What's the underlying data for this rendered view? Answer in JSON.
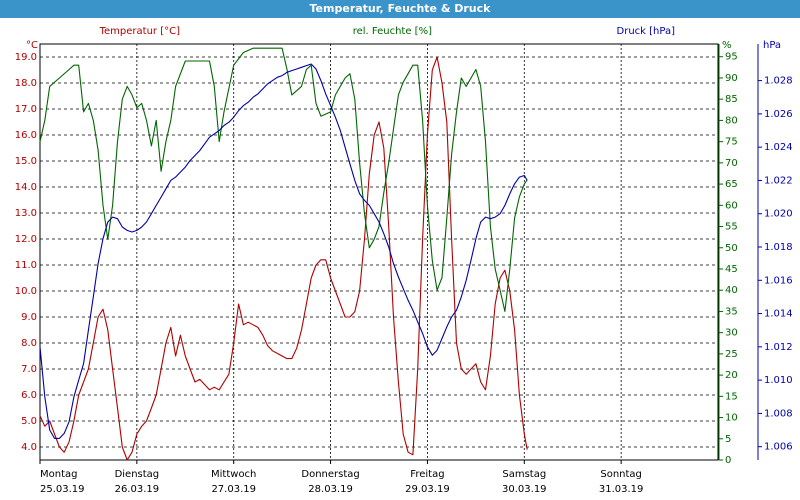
{
  "window": {
    "title": "Temperatur, Feuchte & Druck"
  },
  "colors": {
    "temperature": "#b00000",
    "humidity": "#006600",
    "pressure": "#0000aa",
    "grid": "#000000"
  },
  "chart_data": {
    "type": "line",
    "title": "Temperatur, Feuchte & Druck",
    "x_axis": {
      "range_days": [
        0,
        7
      ],
      "tick_labels": [
        {
          "day": "Montag",
          "date": "25.03.19"
        },
        {
          "day": "Dienstag",
          "date": "26.03.19"
        },
        {
          "day": "Mittwoch",
          "date": "27.03.19"
        },
        {
          "day": "Donnerstag",
          "date": "28.03.19"
        },
        {
          "day": "Freitag",
          "date": "29.03.19"
        },
        {
          "day": "Samstag",
          "date": "30.03.19"
        },
        {
          "day": "Sonntag",
          "date": "31.03.19"
        }
      ]
    },
    "axes": {
      "temperature": {
        "label": "Temperatur [°C]",
        "unit": "°C",
        "range": [
          3.5,
          19.5
        ],
        "ticks": [
          4.0,
          5.0,
          6.0,
          7.0,
          8.0,
          9.0,
          10.0,
          11.0,
          12.0,
          13.0,
          14.0,
          15.0,
          16.0,
          17.0,
          18.0,
          19.0
        ]
      },
      "humidity": {
        "label": "rel. Feuchte [%]",
        "unit": "%",
        "range": [
          0,
          98
        ],
        "ticks": [
          0,
          5,
          10,
          15,
          20,
          25,
          30,
          35,
          40,
          45,
          50,
          55,
          60,
          65,
          70,
          75,
          80,
          85,
          90,
          95
        ]
      },
      "pressure": {
        "label": "Druck [hPa]",
        "unit": "hPa",
        "range": [
          1.0052,
          1.0302
        ],
        "ticks": [
          1.006,
          1.008,
          1.01,
          1.012,
          1.014,
          1.016,
          1.018,
          1.02,
          1.022,
          1.024,
          1.026,
          1.028
        ]
      }
    },
    "grid": true,
    "series": [
      {
        "name": "Temperatur [°C]",
        "axis": "temperature",
        "points": [
          [
            0,
            5.2
          ],
          [
            0.05,
            4.8
          ],
          [
            0.1,
            5.0
          ],
          [
            0.15,
            4.5
          ],
          [
            0.2,
            4.0
          ],
          [
            0.25,
            3.8
          ],
          [
            0.3,
            4.2
          ],
          [
            0.35,
            5.0
          ],
          [
            0.4,
            6.0
          ],
          [
            0.45,
            6.5
          ],
          [
            0.5,
            7.0
          ],
          [
            0.55,
            8.0
          ],
          [
            0.6,
            9.0
          ],
          [
            0.65,
            9.3
          ],
          [
            0.7,
            8.5
          ],
          [
            0.75,
            7.0
          ],
          [
            0.8,
            5.5
          ],
          [
            0.85,
            4.0
          ],
          [
            0.9,
            3.5
          ],
          [
            0.95,
            3.8
          ],
          [
            1.0,
            4.5
          ],
          [
            1.05,
            4.8
          ],
          [
            1.1,
            5.0
          ],
          [
            1.15,
            5.5
          ],
          [
            1.2,
            6.0
          ],
          [
            1.25,
            7.0
          ],
          [
            1.3,
            8.0
          ],
          [
            1.35,
            8.6
          ],
          [
            1.4,
            7.5
          ],
          [
            1.45,
            8.3
          ],
          [
            1.5,
            7.5
          ],
          [
            1.55,
            7.0
          ],
          [
            1.6,
            6.5
          ],
          [
            1.65,
            6.6
          ],
          [
            1.7,
            6.4
          ],
          [
            1.75,
            6.2
          ],
          [
            1.8,
            6.3
          ],
          [
            1.85,
            6.2
          ],
          [
            1.9,
            6.5
          ],
          [
            1.95,
            6.8
          ],
          [
            2.0,
            8.0
          ],
          [
            2.05,
            9.5
          ],
          [
            2.1,
            8.7
          ],
          [
            2.15,
            8.8
          ],
          [
            2.2,
            8.7
          ],
          [
            2.25,
            8.6
          ],
          [
            2.3,
            8.3
          ],
          [
            2.35,
            7.9
          ],
          [
            2.4,
            7.7
          ],
          [
            2.45,
            7.6
          ],
          [
            2.5,
            7.5
          ],
          [
            2.55,
            7.4
          ],
          [
            2.6,
            7.4
          ],
          [
            2.65,
            7.8
          ],
          [
            2.7,
            8.5
          ],
          [
            2.75,
            9.5
          ],
          [
            2.8,
            10.5
          ],
          [
            2.85,
            11.0
          ],
          [
            2.9,
            11.2
          ],
          [
            2.95,
            11.2
          ],
          [
            3.0,
            10.5
          ],
          [
            3.05,
            10.0
          ],
          [
            3.1,
            9.5
          ],
          [
            3.15,
            9.0
          ],
          [
            3.2,
            9.0
          ],
          [
            3.25,
            9.2
          ],
          [
            3.3,
            10.0
          ],
          [
            3.35,
            12.0
          ],
          [
            3.4,
            14.5
          ],
          [
            3.45,
            16.0
          ],
          [
            3.5,
            16.5
          ],
          [
            3.55,
            15.5
          ],
          [
            3.6,
            12.5
          ],
          [
            3.65,
            9.0
          ],
          [
            3.7,
            6.5
          ],
          [
            3.75,
            4.5
          ],
          [
            3.8,
            3.8
          ],
          [
            3.85,
            3.7
          ],
          [
            3.9,
            7.0
          ],
          [
            3.95,
            12.0
          ],
          [
            4.0,
            16.0
          ],
          [
            4.05,
            18.5
          ],
          [
            4.1,
            19.0
          ],
          [
            4.15,
            18.0
          ],
          [
            4.2,
            16.5
          ],
          [
            4.25,
            12.0
          ],
          [
            4.3,
            8.0
          ],
          [
            4.35,
            7.0
          ],
          [
            4.4,
            6.8
          ],
          [
            4.45,
            7.0
          ],
          [
            4.5,
            7.2
          ],
          [
            4.55,
            6.5
          ],
          [
            4.6,
            6.2
          ],
          [
            4.65,
            7.5
          ],
          [
            4.7,
            9.5
          ],
          [
            4.75,
            10.5
          ],
          [
            4.8,
            10.8
          ],
          [
            4.85,
            10.0
          ],
          [
            4.9,
            8.5
          ],
          [
            4.95,
            6.0
          ],
          [
            5.0,
            4.5
          ],
          [
            5.03,
            3.9
          ]
        ]
      },
      {
        "name": "rel. Feuchte [%]",
        "axis": "humidity",
        "points": [
          [
            0,
            75
          ],
          [
            0.05,
            80
          ],
          [
            0.1,
            88
          ],
          [
            0.2,
            90
          ],
          [
            0.3,
            92
          ],
          [
            0.35,
            93
          ],
          [
            0.4,
            93
          ],
          [
            0.45,
            82
          ],
          [
            0.5,
            84
          ],
          [
            0.55,
            80
          ],
          [
            0.6,
            73
          ],
          [
            0.65,
            60
          ],
          [
            0.7,
            52
          ],
          [
            0.75,
            60
          ],
          [
            0.8,
            75
          ],
          [
            0.85,
            85
          ],
          [
            0.9,
            88
          ],
          [
            0.95,
            86
          ],
          [
            1.0,
            83
          ],
          [
            1.05,
            84
          ],
          [
            1.1,
            80
          ],
          [
            1.15,
            74
          ],
          [
            1.2,
            80
          ],
          [
            1.25,
            68
          ],
          [
            1.3,
            75
          ],
          [
            1.35,
            80
          ],
          [
            1.4,
            88
          ],
          [
            1.5,
            94
          ],
          [
            1.6,
            94
          ],
          [
            1.7,
            94
          ],
          [
            1.75,
            94
          ],
          [
            1.8,
            88
          ],
          [
            1.85,
            75
          ],
          [
            1.9,
            82
          ],
          [
            2.0,
            93
          ],
          [
            2.1,
            96
          ],
          [
            2.2,
            97
          ],
          [
            2.3,
            97
          ],
          [
            2.4,
            97
          ],
          [
            2.45,
            97
          ],
          [
            2.5,
            97
          ],
          [
            2.55,
            92
          ],
          [
            2.6,
            86
          ],
          [
            2.7,
            88
          ],
          [
            2.75,
            92
          ],
          [
            2.8,
            93
          ],
          [
            2.85,
            84
          ],
          [
            2.9,
            81
          ],
          [
            3.0,
            82
          ],
          [
            3.05,
            86
          ],
          [
            3.1,
            88
          ],
          [
            3.15,
            90
          ],
          [
            3.2,
            91
          ],
          [
            3.25,
            85
          ],
          [
            3.3,
            70
          ],
          [
            3.35,
            58
          ],
          [
            3.4,
            50
          ],
          [
            3.45,
            52
          ],
          [
            3.5,
            55
          ],
          [
            3.55,
            63
          ],
          [
            3.6,
            70
          ],
          [
            3.65,
            78
          ],
          [
            3.7,
            86
          ],
          [
            3.75,
            89
          ],
          [
            3.8,
            91
          ],
          [
            3.85,
            93
          ],
          [
            3.9,
            93
          ],
          [
            3.95,
            80
          ],
          [
            4.0,
            60
          ],
          [
            4.05,
            47
          ],
          [
            4.1,
            40
          ],
          [
            4.15,
            43
          ],
          [
            4.2,
            57
          ],
          [
            4.25,
            72
          ],
          [
            4.3,
            82
          ],
          [
            4.35,
            90
          ],
          [
            4.4,
            88
          ],
          [
            4.45,
            90
          ],
          [
            4.5,
            92
          ],
          [
            4.55,
            88
          ],
          [
            4.6,
            75
          ],
          [
            4.65,
            55
          ],
          [
            4.7,
            45
          ],
          [
            4.75,
            40
          ],
          [
            4.8,
            35
          ],
          [
            4.85,
            45
          ],
          [
            4.9,
            57
          ],
          [
            4.95,
            62
          ],
          [
            5.0,
            65
          ],
          [
            5.03,
            66
          ]
        ]
      },
      {
        "name": "Druck [hPa]",
        "axis": "pressure",
        "points": [
          [
            0,
            1.012
          ],
          [
            0.05,
            1.009
          ],
          [
            0.1,
            1.007
          ],
          [
            0.15,
            1.0065
          ],
          [
            0.2,
            1.0065
          ],
          [
            0.25,
            1.0068
          ],
          [
            0.3,
            1.0075
          ],
          [
            0.35,
            1.009
          ],
          [
            0.4,
            1.01
          ],
          [
            0.45,
            1.011
          ],
          [
            0.5,
            1.013
          ],
          [
            0.55,
            1.015
          ],
          [
            0.6,
            1.017
          ],
          [
            0.65,
            1.0185
          ],
          [
            0.7,
            1.0195
          ],
          [
            0.75,
            1.0198
          ],
          [
            0.8,
            1.0197
          ],
          [
            0.85,
            1.0192
          ],
          [
            0.9,
            1.019
          ],
          [
            0.95,
            1.0189
          ],
          [
            1.0,
            1.019
          ],
          [
            1.05,
            1.0192
          ],
          [
            1.1,
            1.0195
          ],
          [
            1.15,
            1.02
          ],
          [
            1.2,
            1.0205
          ],
          [
            1.25,
            1.021
          ],
          [
            1.3,
            1.0215
          ],
          [
            1.35,
            1.022
          ],
          [
            1.4,
            1.0222
          ],
          [
            1.45,
            1.0225
          ],
          [
            1.5,
            1.0228
          ],
          [
            1.55,
            1.0232
          ],
          [
            1.6,
            1.0235
          ],
          [
            1.65,
            1.0238
          ],
          [
            1.7,
            1.0242
          ],
          [
            1.75,
            1.0246
          ],
          [
            1.8,
            1.0248
          ],
          [
            1.85,
            1.025
          ],
          [
            1.9,
            1.0253
          ],
          [
            1.95,
            1.0255
          ],
          [
            2.0,
            1.0258
          ],
          [
            2.05,
            1.0262
          ],
          [
            2.1,
            1.0265
          ],
          [
            2.15,
            1.0267
          ],
          [
            2.2,
            1.027
          ],
          [
            2.25,
            1.0272
          ],
          [
            2.3,
            1.0275
          ],
          [
            2.35,
            1.0278
          ],
          [
            2.4,
            1.028
          ],
          [
            2.45,
            1.0282
          ],
          [
            2.5,
            1.0283
          ],
          [
            2.55,
            1.0285
          ],
          [
            2.6,
            1.0286
          ],
          [
            2.65,
            1.0287
          ],
          [
            2.7,
            1.0288
          ],
          [
            2.75,
            1.0289
          ],
          [
            2.8,
            1.029
          ],
          [
            2.85,
            1.0287
          ],
          [
            2.9,
            1.028
          ],
          [
            2.95,
            1.0272
          ],
          [
            3.0,
            1.0265
          ],
          [
            3.05,
            1.0258
          ],
          [
            3.1,
            1.025
          ],
          [
            3.15,
            1.024
          ],
          [
            3.2,
            1.023
          ],
          [
            3.25,
            1.022
          ],
          [
            3.3,
            1.0212
          ],
          [
            3.35,
            1.0208
          ],
          [
            3.4,
            1.0205
          ],
          [
            3.45,
            1.02
          ],
          [
            3.5,
            1.0195
          ],
          [
            3.55,
            1.0188
          ],
          [
            3.6,
            1.018
          ],
          [
            3.65,
            1.017
          ],
          [
            3.7,
            1.0162
          ],
          [
            3.75,
            1.0155
          ],
          [
            3.8,
            1.0148
          ],
          [
            3.85,
            1.0142
          ],
          [
            3.9,
            1.0135
          ],
          [
            3.95,
            1.0128
          ],
          [
            4.0,
            1.012
          ],
          [
            4.05,
            1.0115
          ],
          [
            4.1,
            1.0118
          ],
          [
            4.15,
            1.0125
          ],
          [
            4.2,
            1.0132
          ],
          [
            4.25,
            1.0138
          ],
          [
            4.3,
            1.0142
          ],
          [
            4.35,
            1.015
          ],
          [
            4.4,
            1.016
          ],
          [
            4.45,
            1.0172
          ],
          [
            4.5,
            1.0185
          ],
          [
            4.55,
            1.0195
          ],
          [
            4.6,
            1.0198
          ],
          [
            4.65,
            1.0197
          ],
          [
            4.7,
            1.0198
          ],
          [
            4.75,
            1.02
          ],
          [
            4.8,
            1.0205
          ],
          [
            4.85,
            1.0212
          ],
          [
            4.9,
            1.0218
          ],
          [
            4.95,
            1.0222
          ],
          [
            5.0,
            1.0223
          ],
          [
            5.03,
            1.022
          ]
        ]
      }
    ]
  }
}
